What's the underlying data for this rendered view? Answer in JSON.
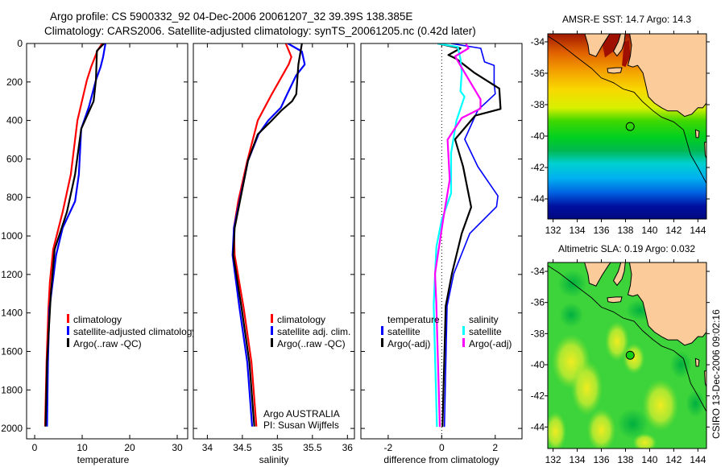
{
  "header": {
    "line1": "Argo profile: CS 5900332_92 04-Dec-2006 20061207_32 39.39S 138.385E",
    "line2": "Climatology: CARS2006. Satellite-adjusted climatology: synTS_20061205.nc (0.42d later)"
  },
  "footer_stamp": "CSIRO 13-Dec-2006 09:02:16",
  "colors": {
    "climatology": "#ff0000",
    "satellite": "#0000ff",
    "argo": "#000000",
    "sal_satellite": "#00ffff",
    "sal_argo": "#ff00ff",
    "land": "#fccb9a"
  },
  "chart_data": [
    {
      "type": "line",
      "xlabel": "temperature",
      "ylabel": "",
      "xlim": [
        -1.7,
        32.2
      ],
      "ylim": [
        0,
        2054
      ],
      "y_reversed": true,
      "xticks": [
        "0",
        "10",
        "20",
        "30"
      ],
      "yticks": [
        "0",
        "200",
        "400",
        "600",
        "800",
        "1000",
        "1200",
        "1400",
        "1600",
        "1800",
        "2000"
      ],
      "legend": [
        "climatology",
        "satellite-adjusted climatology",
        "Argo(..raw -QC)"
      ],
      "series": [
        {
          "name": "climatology",
          "color": "#ff0000",
          "depth": [
            0,
            38,
            121,
            190,
            400,
            680,
            875,
            1070,
            1240,
            1380,
            1657,
            1990
          ],
          "values": [
            14.2,
            13.2,
            11.9,
            11.0,
            9.0,
            7.6,
            5.9,
            3.9,
            3.2,
            2.9,
            2.5,
            2.2
          ]
        },
        {
          "name": "satellite-adjusted climatology",
          "color": "#0000ff",
          "depth": [
            0,
            70,
            120,
            190,
            330,
            444,
            680,
            820,
            958,
            1100,
            1380,
            1657,
            1990
          ],
          "values": [
            14.9,
            14.4,
            13.9,
            12.9,
            11.4,
            9.8,
            9.3,
            8.5,
            5.9,
            4.5,
            3.1,
            2.8,
            2.6
          ]
        },
        {
          "name": "Argo(..raw -QC)",
          "color": "#000000",
          "depth": [
            0,
            38,
            190,
            300,
            444,
            680,
            875,
            1070,
            1300,
            1657,
            1990
          ],
          "values": [
            14.6,
            13.1,
            12.9,
            12.4,
            9.8,
            8.5,
            6.8,
            4.2,
            3.4,
            2.6,
            2.3
          ]
        }
      ]
    },
    {
      "type": "line",
      "xlabel": "salinity",
      "xlim": [
        33.8,
        36.1
      ],
      "ylim": [
        0,
        2054
      ],
      "y_reversed": true,
      "xticks": [
        "34",
        "34.5",
        "35",
        "35.5",
        "36"
      ],
      "legend": [
        "climatology",
        "satellite adj. clim.",
        "Argo(..raw -QC)"
      ],
      "annotation": [
        "Argo AUSTRALIA",
        "PI: Susan Wijffels"
      ],
      "series": [
        {
          "name": "climatology",
          "color": "#ff0000",
          "depth": [
            0,
            70,
            109,
            263,
            400,
            610,
            820,
            958,
            1100,
            1377,
            1657,
            1990
          ],
          "values": [
            35.12,
            35.2,
            35.16,
            34.92,
            34.72,
            34.57,
            34.44,
            34.38,
            34.39,
            34.52,
            34.63,
            34.7
          ]
        },
        {
          "name": "satellite adj. clim.",
          "color": "#0000ff",
          "depth": [
            0,
            42,
            109,
            165,
            263,
            333,
            400,
            472,
            610,
            958,
            1100,
            1377,
            1657,
            1990
          ],
          "values": [
            35.15,
            35.35,
            35.39,
            35.27,
            35.14,
            35.05,
            34.87,
            34.73,
            34.58,
            34.38,
            34.36,
            34.46,
            34.57,
            34.64
          ]
        },
        {
          "name": "Argo(..raw -QC)",
          "color": "#000000",
          "depth": [
            0,
            109,
            263,
            300,
            347,
            400,
            472,
            610,
            958,
            1100,
            1377,
            1657,
            1990
          ],
          "values": [
            35.35,
            35.3,
            35.27,
            35.21,
            35.06,
            34.92,
            34.72,
            34.58,
            34.39,
            34.37,
            34.49,
            34.6,
            34.67
          ]
        }
      ]
    },
    {
      "type": "line",
      "xlabel": "difference from climatology",
      "xlim": [
        -3.02,
        3.0
      ],
      "ylim": [
        0,
        2054
      ],
      "y_reversed": true,
      "xticks": [
        "-2",
        "0",
        "2"
      ],
      "legend_groups": [
        {
          "title": "temperature",
          "items": [
            "satellite",
            "Argo(-adj)"
          ]
        },
        {
          "title": "salinity",
          "items": [
            "satellite",
            "Argo(-adj)"
          ]
        }
      ],
      "series": [
        {
          "name": "temperature satellite",
          "color": "#0000ff",
          "depth": [
            0,
            25,
            96,
            114,
            206,
            262,
            346,
            498,
            640,
            792,
            848,
            987,
            1196,
            1364,
            1992
          ],
          "values": [
            0.35,
            1.46,
            1.6,
            1.96,
            1.96,
            2.0,
            1.35,
            0.86,
            1.35,
            2.1,
            2.05,
            1.05,
            0.45,
            0.2,
            0.1
          ]
        },
        {
          "name": "temperature Argo(-adj)",
          "color": "#000000",
          "depth": [
            0,
            25,
            60,
            80,
            150,
            234,
            340,
            375,
            498,
            640,
            850,
            987,
            1196,
            1364,
            1992
          ],
          "values": [
            -0.15,
            0.7,
            0.25,
            0.55,
            1.2,
            2.15,
            2.2,
            1.25,
            0.5,
            0.8,
            1.1,
            0.75,
            0.38,
            0.15,
            0.03
          ]
        },
        {
          "name": "salinity satellite",
          "color": "#00ffff",
          "depth": [
            0,
            18,
            80,
            150,
            248,
            276,
            401,
            569,
            778,
            918,
            1057,
            1356,
            1364,
            1992
          ],
          "values": [
            -0.15,
            0.6,
            0.7,
            0.75,
            0.7,
            0.85,
            0.55,
            0.35,
            0.35,
            0.0,
            -0.2,
            -0.3,
            -0.3,
            -0.18
          ]
        },
        {
          "name": "salinity Argo(-adj)",
          "color": "#ff00ff",
          "depth": [
            0,
            25,
            67,
            150,
            290,
            338,
            387,
            500,
            708,
            918,
            1196,
            1356,
            1364,
            1992
          ],
          "values": [
            0.9,
            1.0,
            0.5,
            0.85,
            1.45,
            1.45,
            0.75,
            0.22,
            0.3,
            0.05,
            -0.25,
            -0.2,
            -0.2,
            -0.07
          ]
        }
      ]
    },
    {
      "type": "heatmap",
      "title": "AMSR-E SST: 14.7 Argo: 14.3",
      "xlim": [
        131.56,
        144.71
      ],
      "ylim": [
        -45.28,
        -33.49
      ],
      "xticks": [
        "132",
        "134",
        "136",
        "138",
        "140",
        "142",
        "144"
      ],
      "yticks": [
        "-34",
        "-36",
        "-38",
        "-40",
        "-42",
        "-44"
      ],
      "marker": {
        "lon": 138.385,
        "lat": -39.39
      }
    },
    {
      "type": "heatmap",
      "title": "Altimetric SLA: 0.19 Argo: 0.032",
      "xlim": [
        131.56,
        144.71
      ],
      "ylim": [
        -45.38,
        -33.43
      ],
      "xticks": [
        "132",
        "134",
        "136",
        "138",
        "140",
        "142",
        "144"
      ],
      "yticks": [
        "-34",
        "-36",
        "-38",
        "-40",
        "-42",
        "-44"
      ],
      "marker": {
        "lon": 138.385,
        "lat": -39.39
      }
    }
  ]
}
